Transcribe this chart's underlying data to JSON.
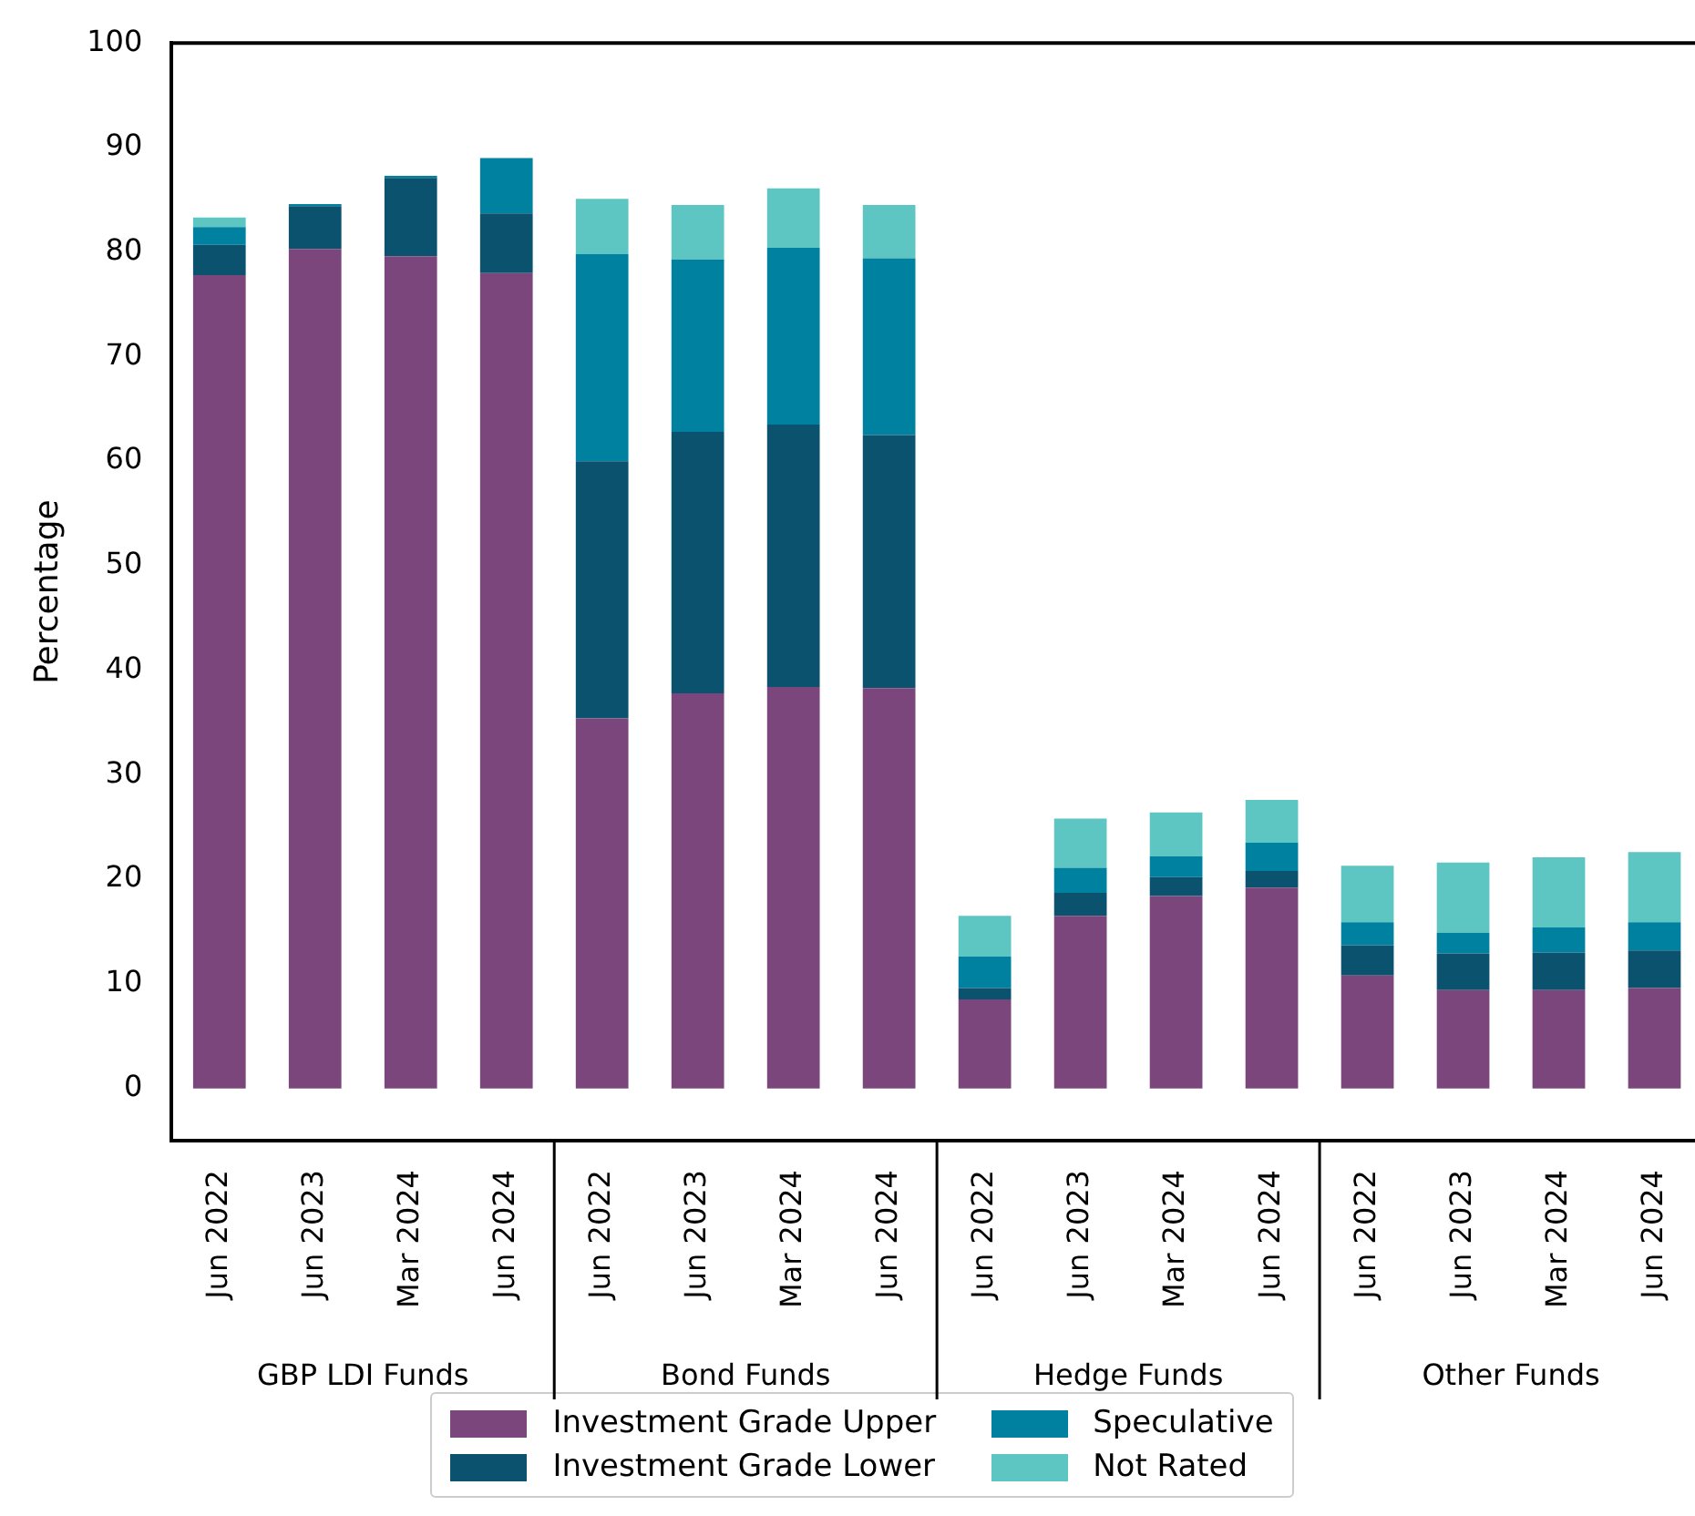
{
  "chart_data": {
    "type": "bar",
    "stacked": true,
    "ylabel": "Percentage",
    "categories": [
      "Jun 2022",
      "Jun 2023",
      "Mar 2024",
      "Jun 2024",
      "Jun 2022",
      "Jun 2023",
      "Mar 2024",
      "Jun 2024",
      "Jun 2022",
      "Jun 2023",
      "Mar 2024",
      "Jun 2024",
      "Jun 2022",
      "Jun 2023",
      "Mar 2024",
      "Jun 2024"
    ],
    "annotations": [
      "GBP LDI Funds",
      "Bond Funds",
      "Hedge Funds",
      "Other Funds"
    ],
    "series": [
      {
        "name": "Investment Grade Upper",
        "color": "#7b467c",
        "values": [
          77.8,
          80.3,
          79.6,
          78.0,
          35.4,
          37.8,
          38.4,
          38.3,
          8.5,
          16.5,
          18.4,
          19.2,
          10.8,
          9.4,
          9.4,
          9.6
        ]
      },
      {
        "name": "Investment Grade Lower",
        "color": "#0b526f",
        "values": [
          2.9,
          4.1,
          7.5,
          5.7,
          24.6,
          25.0,
          25.1,
          24.2,
          1.1,
          2.2,
          1.8,
          1.6,
          2.9,
          3.5,
          3.6,
          3.6
        ]
      },
      {
        "name": "Speculative",
        "color": "#00819f",
        "values": [
          1.7,
          0.2,
          0.2,
          5.3,
          19.8,
          16.5,
          16.9,
          16.9,
          3.0,
          2.4,
          2.0,
          2.7,
          2.2,
          2.0,
          2.4,
          2.7
        ]
      },
      {
        "name": "Not Rated",
        "color": "#5ec6c2",
        "values": [
          0.9,
          0,
          0,
          0,
          5.3,
          5.2,
          5.7,
          5.1,
          3.9,
          4.7,
          4.2,
          4.1,
          5.4,
          6.7,
          6.7,
          6.7
        ]
      }
    ],
    "ylim": [
      -5,
      100
    ],
    "yticks": [
      0,
      10,
      20,
      30,
      40,
      50,
      60,
      70,
      80,
      90,
      100
    ],
    "grid": false,
    "legend": "bottom"
  }
}
